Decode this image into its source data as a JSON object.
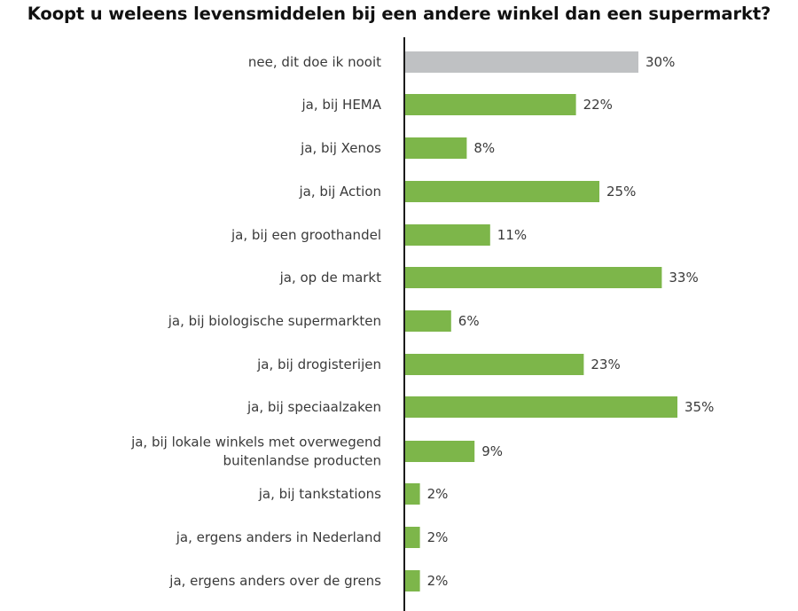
{
  "chart_data": {
    "type": "bar",
    "orientation": "horizontal",
    "title": "Koopt u weleens levensmiddelen bij een andere winkel dan een supermarkt?",
    "xlabel": "",
    "ylabel": "",
    "xlim": [
      0,
      100
    ],
    "grid": false,
    "legend": "none",
    "value_suffix": "%",
    "colors": {
      "highlight": "#bfc1c3",
      "default": "#7db64a",
      "axis": "#1a1a1a"
    },
    "categories": [
      [
        "nee, dit doe ik nooit"
      ],
      [
        "ja, bij HEMA"
      ],
      [
        "ja, bij Xenos"
      ],
      [
        "ja, bij Action"
      ],
      [
        "ja, bij een groothandel"
      ],
      [
        "ja, op de markt"
      ],
      [
        "ja, bij biologische supermarkten"
      ],
      [
        "ja, bij drogisterijen"
      ],
      [
        "ja, bij speciaalzaken"
      ],
      [
        "ja, bij lokale winkels met overwegend",
        "buitenlandse producten"
      ],
      [
        "ja, bij tankstations"
      ],
      [
        "ja, ergens anders in Nederland"
      ],
      [
        "ja, ergens anders over de grens"
      ]
    ],
    "values": [
      30,
      22,
      8,
      25,
      11,
      33,
      6,
      23,
      35,
      9,
      2,
      2,
      2
    ],
    "highlight_index": 0
  }
}
